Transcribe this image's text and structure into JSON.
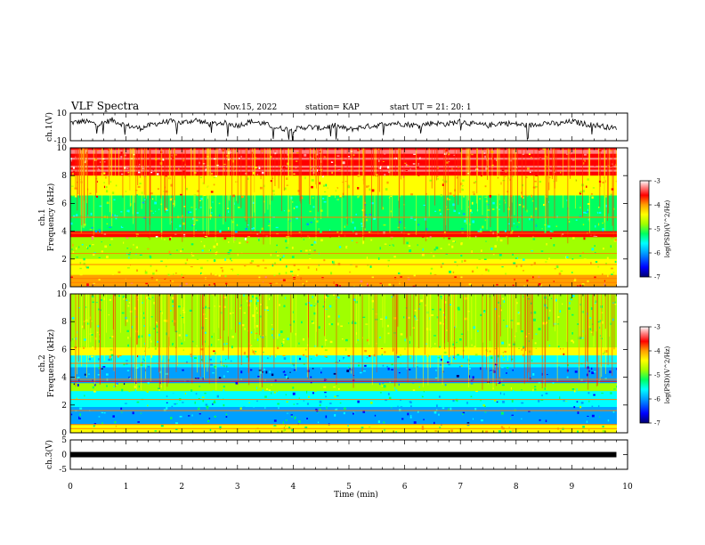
{
  "header": {
    "title": "VLF Spectra",
    "date": "Nov.15, 2022",
    "station": "station= KAP",
    "start": "start  UT  =   21: 20: 1"
  },
  "colors": {
    "scale": [
      "#000070",
      "#0000ff",
      "#00a0ff",
      "#00ffff",
      "#00ff60",
      "#a0ff00",
      "#ffff00",
      "#ffa000",
      "#ff0000",
      "#ff8080",
      "#ffffff"
    ]
  },
  "chart_data": [
    {
      "type": "line",
      "name": "ch1-waveform",
      "ylabel": "ch.1(V)",
      "ylim": [
        -10,
        10
      ],
      "yticks": [
        "10",
        "-10"
      ],
      "xlim": [
        0,
        10
      ],
      "x": [
        0,
        0.25,
        0.5,
        0.75,
        1.0,
        1.25,
        1.5,
        1.75,
        2.0,
        2.25,
        2.5,
        2.75,
        3.0,
        3.25,
        3.5,
        3.75,
        4.0,
        4.25,
        4.5,
        4.75,
        5.0,
        5.25,
        5.5,
        5.75,
        6.0,
        6.25,
        6.5,
        6.75,
        7.0,
        7.25,
        7.5,
        7.75,
        8.0,
        8.25,
        8.5,
        8.75,
        9.0,
        9.25,
        9.5,
        9.75
      ],
      "values": [
        3,
        4,
        2,
        5,
        1,
        -1,
        2,
        4,
        3,
        5,
        2,
        3,
        1,
        4,
        2,
        -1,
        -2,
        0,
        -1,
        1,
        -2,
        0,
        1,
        3,
        2,
        1,
        3,
        2,
        4,
        2,
        1,
        3,
        2,
        1,
        3,
        2,
        4,
        2,
        1,
        -1
      ]
    },
    {
      "type": "heatmap",
      "name": "ch1-spectrogram",
      "ylabel_top": "ch.1",
      "ylabel": "Frequency (kHz)",
      "ylim": [
        0,
        10
      ],
      "yticks": [
        "0",
        "2",
        "4",
        "6",
        "8",
        "10"
      ],
      "xlim": [
        0,
        10
      ],
      "colorbar": {
        "label": "log(PSD)(V^2/Hz)",
        "range": [
          -7,
          -3
        ],
        "ticks": [
          "-3",
          "-4",
          "-5",
          "-6",
          "-7"
        ]
      }
    },
    {
      "type": "heatmap",
      "name": "ch2-spectrogram",
      "ylabel_top": "ch.2",
      "ylabel": "Frequency (kHz)",
      "ylim": [
        0,
        10
      ],
      "yticks": [
        "0",
        "2",
        "4",
        "6",
        "8",
        "10"
      ],
      "xlim": [
        0,
        10
      ],
      "colorbar": {
        "label": "log(PSD)(V^2/Hz)",
        "range": [
          -7,
          -3
        ],
        "ticks": [
          "-3",
          "-4",
          "-5",
          "-6",
          "-7"
        ]
      }
    },
    {
      "type": "line",
      "name": "ch3-waveform",
      "ylabel": "ch.3(V)",
      "ylim": [
        -5,
        5
      ],
      "yticks": [
        "5",
        "0",
        "-5"
      ],
      "xlim": [
        0,
        10
      ],
      "x": [
        0,
        9.8
      ],
      "values": [
        0,
        0
      ]
    }
  ],
  "xaxis": {
    "label": "Time (min)",
    "ticks": [
      "0",
      "1",
      "2",
      "3",
      "4",
      "5",
      "6",
      "7",
      "8",
      "9",
      "10"
    ]
  }
}
